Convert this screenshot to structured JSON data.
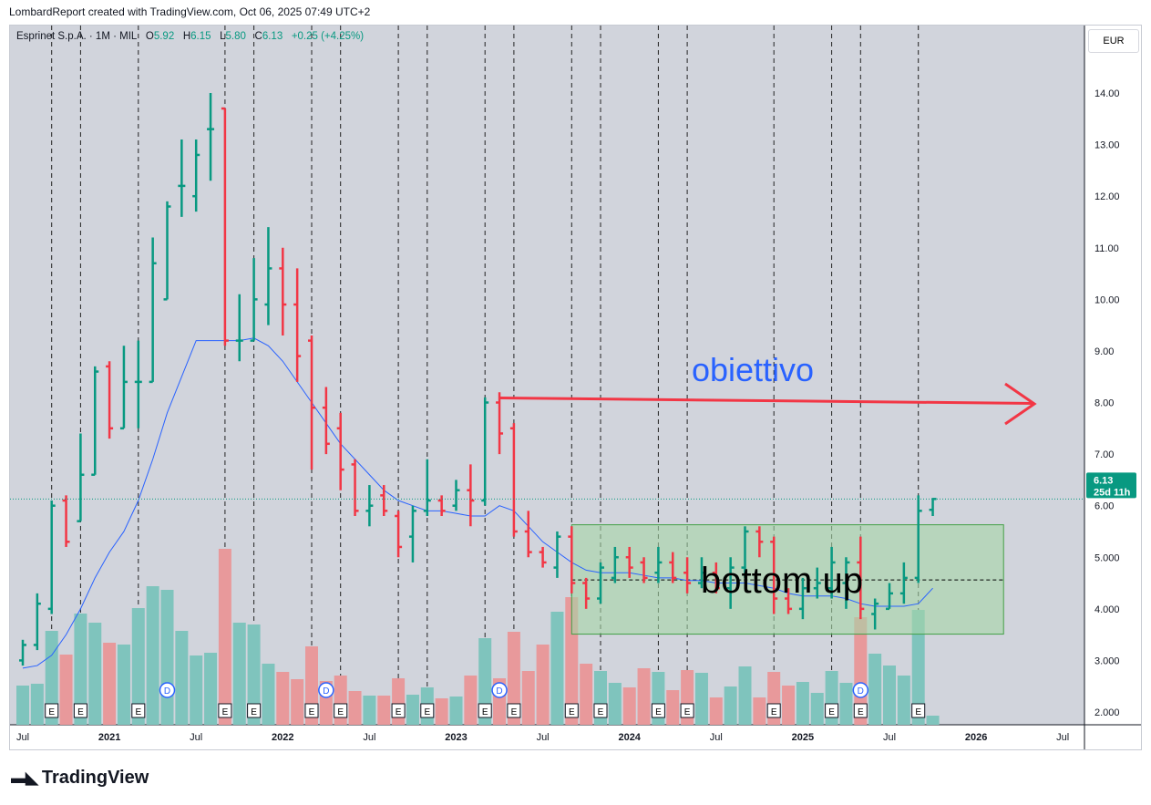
{
  "header": {
    "created": "LombardReport created with TradingView.com, Oct 06, 2025 07:49 UTC+2"
  },
  "legend": {
    "symbol": "Esprinet S.p.A. · 1M · MIL",
    "o_label": "O",
    "o": "5.92",
    "h_label": "H",
    "h": "6.15",
    "l_label": "L",
    "l": "5.80",
    "c_label": "C",
    "c": "6.13",
    "change": "+0.25 (+4.25%)"
  },
  "currency": "EUR",
  "price_label": {
    "price": "6.13",
    "countdown": "25d 11h"
  },
  "logo": "TradingView",
  "colors": {
    "up": "#089981",
    "down": "#f23645",
    "ma": "#2962ff",
    "vol_up": "#7fc4bd",
    "vol_down": "#e8999b",
    "box": "#a5d6a7"
  },
  "annotations": {
    "target_text": "obiettivo",
    "box_text": "bottom up"
  },
  "chart_data": {
    "type": "ohlc",
    "title": "Esprinet S.p.A. · 1M · MIL",
    "ylim": [
      1.7,
      14.6
    ],
    "y_ticks": [
      "14.00",
      "13.00",
      "12.00",
      "11.00",
      "10.00",
      "9.00",
      "8.00",
      "7.00",
      "6.00",
      "5.000",
      "4.000",
      "3.000",
      "2.000"
    ],
    "x_ticks": [
      "Jul",
      "2021",
      "Jul",
      "2022",
      "Jul",
      "2023",
      "Jul",
      "2024",
      "Jul",
      "2025",
      "Jul",
      "2026",
      "Jul"
    ],
    "start": "2020-07",
    "ohlc": [
      [
        3.0,
        3.4,
        2.9,
        3.3
      ],
      [
        3.3,
        4.3,
        3.2,
        4.1
      ],
      [
        4.0,
        6.1,
        3.9,
        6.0
      ],
      [
        6.1,
        6.2,
        5.2,
        5.3
      ],
      [
        5.7,
        7.4,
        5.7,
        6.6
      ],
      [
        6.6,
        8.7,
        6.6,
        8.6
      ],
      [
        8.7,
        8.8,
        7.3,
        7.5
      ],
      [
        7.5,
        9.1,
        7.5,
        8.4
      ],
      [
        8.4,
        9.2,
        7.5,
        8.4
      ],
      [
        8.4,
        11.2,
        8.4,
        10.7
      ],
      [
        10.0,
        11.9,
        10.0,
        11.8
      ],
      [
        12.2,
        13.1,
        11.6,
        12.2
      ],
      [
        12.0,
        13.1,
        11.7,
        12.8
      ],
      [
        13.3,
        14.0,
        12.3,
        13.3
      ],
      [
        13.7,
        13.7,
        9.1,
        9.2
      ],
      [
        9.2,
        10.1,
        8.8,
        9.2
      ],
      [
        9.2,
        10.8,
        9.2,
        10.0
      ],
      [
        9.9,
        11.4,
        9.5,
        10.6
      ],
      [
        10.6,
        11.0,
        9.3,
        9.9
      ],
      [
        9.9,
        10.6,
        8.4,
        8.9
      ],
      [
        9.2,
        9.3,
        6.7,
        7.9
      ],
      [
        7.9,
        8.3,
        7.0,
        7.2
      ],
      [
        7.5,
        7.8,
        6.3,
        6.7
      ],
      [
        6.8,
        6.9,
        5.8,
        5.9
      ],
      [
        5.9,
        6.4,
        5.6,
        6.0
      ],
      [
        6.2,
        6.4,
        5.8,
        5.9
      ],
      [
        5.8,
        5.9,
        5.0,
        5.2
      ],
      [
        5.4,
        6.0,
        4.9,
        5.9
      ],
      [
        5.9,
        6.9,
        5.8,
        6.1
      ],
      [
        6.1,
        6.2,
        5.8,
        5.9
      ],
      [
        6.0,
        6.5,
        5.9,
        6.3
      ],
      [
        6.3,
        6.8,
        5.6,
        6.1
      ],
      [
        6.1,
        8.1,
        6.0,
        8.0
      ],
      [
        8.0,
        8.2,
        7.0,
        7.4
      ],
      [
        7.5,
        7.6,
        5.4,
        5.5
      ],
      [
        5.5,
        5.9,
        5.0,
        5.1
      ],
      [
        5.1,
        5.2,
        4.8,
        4.9
      ],
      [
        4.8,
        5.5,
        4.6,
        5.4
      ],
      [
        5.4,
        5.6,
        4.3,
        4.5
      ],
      [
        4.5,
        4.6,
        4.0,
        4.2
      ],
      [
        4.2,
        4.9,
        4.1,
        4.8
      ],
      [
        4.6,
        5.2,
        4.5,
        5.0
      ],
      [
        5.0,
        5.2,
        4.6,
        4.8
      ],
      [
        4.9,
        5.0,
        4.5,
        4.6
      ],
      [
        4.7,
        5.2,
        4.5,
        4.9
      ],
      [
        4.9,
        5.1,
        4.5,
        4.6
      ],
      [
        4.7,
        5.0,
        4.3,
        4.5
      ],
      [
        4.5,
        5.0,
        4.4,
        4.7
      ],
      [
        4.7,
        4.9,
        4.3,
        4.4
      ],
      [
        4.4,
        5.0,
        4.0,
        4.8
      ],
      [
        4.8,
        5.6,
        4.6,
        5.5
      ],
      [
        5.5,
        5.6,
        5.0,
        5.3
      ],
      [
        5.3,
        5.4,
        3.9,
        4.2
      ],
      [
        4.2,
        4.4,
        3.9,
        4.0
      ],
      [
        4.0,
        4.6,
        3.8,
        4.4
      ],
      [
        4.4,
        4.8,
        4.2,
        4.5
      ],
      [
        4.4,
        5.2,
        4.2,
        4.9
      ],
      [
        4.5,
        5.0,
        4.0,
        4.9
      ],
      [
        4.9,
        5.4,
        3.8,
        4.0
      ],
      [
        3.9,
        4.2,
        3.6,
        4.1
      ],
      [
        4.0,
        4.5,
        4.0,
        4.3
      ],
      [
        4.3,
        4.9,
        4.1,
        4.6
      ],
      [
        4.6,
        6.2,
        4.5,
        5.9
      ],
      [
        5.92,
        6.15,
        5.8,
        6.13
      ]
    ],
    "volume_rel": [
      43,
      45,
      103,
      77,
      122,
      112,
      90,
      88,
      128,
      152,
      148,
      103,
      76,
      79,
      193,
      112,
      110,
      67,
      58,
      50,
      86,
      48,
      54,
      37,
      32,
      32,
      51,
      33,
      41,
      29,
      31,
      54,
      95,
      51,
      102,
      59,
      88,
      124,
      140,
      67,
      59,
      46,
      41,
      62,
      58,
      38,
      60,
      57,
      30,
      42,
      64,
      30,
      58,
      43,
      47,
      35,
      59,
      46,
      118,
      78,
      65,
      54,
      126,
      10
    ],
    "ma": [
      2.85,
      2.9,
      3.1,
      3.5,
      4.0,
      4.6,
      5.1,
      5.5,
      6.1,
      6.9,
      7.8,
      8.5,
      9.2,
      9.2,
      9.2,
      9.2,
      9.25,
      9.1,
      8.8,
      8.4,
      8.0,
      7.6,
      7.2,
      6.9,
      6.6,
      6.3,
      6.1,
      6.0,
      5.9,
      5.9,
      5.85,
      5.8,
      5.8,
      6.0,
      5.9,
      5.6,
      5.3,
      5.1,
      4.9,
      4.75,
      4.7,
      4.7,
      4.7,
      4.65,
      4.6,
      4.6,
      4.55,
      4.55,
      4.5,
      4.5,
      4.5,
      4.45,
      4.4,
      4.3,
      4.25,
      4.25,
      4.25,
      4.2,
      4.1,
      4.05,
      4.05,
      4.05,
      4.1,
      4.4
    ],
    "earnings_months": [
      2,
      4,
      8,
      14,
      16,
      20,
      22,
      26,
      28,
      32,
      34,
      38,
      40,
      44,
      46,
      52,
      56,
      58,
      62
    ],
    "dividend_months": [
      10,
      21,
      33,
      58
    ],
    "target_price": 8.0,
    "box": {
      "from_month": 38,
      "to_month": 67.9,
      "high": 5.63,
      "low": 3.51,
      "mid": 4.56
    },
    "last_price": 6.13
  }
}
